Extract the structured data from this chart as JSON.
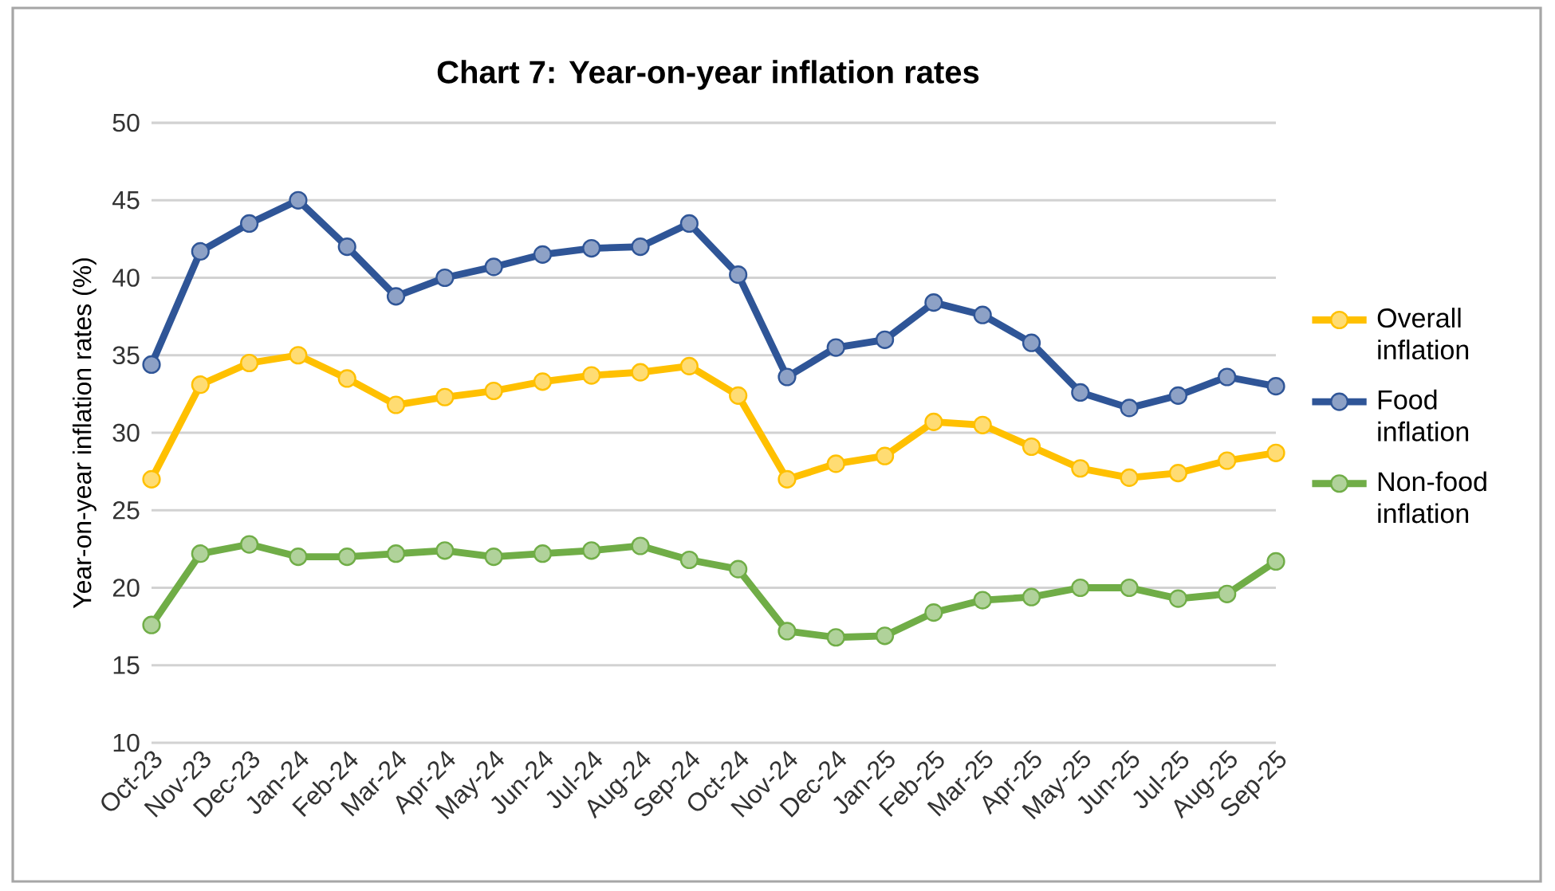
{
  "chart_data": {
    "type": "line",
    "title": "Chart 7: Year-on-year inflation rates",
    "ylabel": "Year-on-year inflation rates (%)",
    "categories": [
      "Oct-23",
      "Nov-23",
      "Dec-23",
      "Jan-24",
      "Feb-24",
      "Mar-24",
      "Apr-24",
      "May-24",
      "Jun-24",
      "Jul-24",
      "Aug-24",
      "Sep-24",
      "Oct-24",
      "Nov-24",
      "Dec-24",
      "Jan-25",
      "Feb-25",
      "Mar-25",
      "Apr-25",
      "May-25",
      "Jun-25",
      "Jul-25",
      "Aug-25",
      "Sep-25"
    ],
    "series": [
      {
        "name": "Overall inflation",
        "color": "#ffc000",
        "values": [
          27.0,
          33.1,
          34.5,
          35.0,
          33.5,
          31.8,
          32.3,
          32.7,
          33.3,
          33.7,
          33.9,
          34.3,
          32.4,
          27.0,
          28.0,
          28.5,
          30.7,
          30.5,
          29.1,
          27.7,
          27.1,
          27.4,
          28.2,
          28.7
        ]
      },
      {
        "name": "Food inflation",
        "color": "#2f5597",
        "values": [
          34.4,
          41.7,
          43.5,
          45.0,
          42.0,
          38.8,
          40.0,
          40.7,
          41.5,
          41.9,
          42.0,
          43.5,
          40.2,
          33.6,
          35.5,
          36.0,
          38.4,
          37.6,
          35.8,
          32.6,
          31.6,
          32.4,
          33.6,
          33.0
        ]
      },
      {
        "name": "Non-food inflation",
        "color": "#70ad47",
        "values": [
          17.6,
          22.2,
          22.8,
          22.0,
          22.0,
          22.2,
          22.4,
          22.0,
          22.2,
          22.4,
          22.7,
          21.8,
          21.2,
          17.2,
          16.8,
          16.9,
          18.4,
          19.2,
          19.4,
          20.0,
          20.0,
          19.3,
          19.6,
          21.7
        ]
      }
    ],
    "ylim": [
      10,
      50
    ],
    "yticks": [
      10,
      15,
      20,
      25,
      30,
      35,
      40,
      45,
      50
    ],
    "grid": "y",
    "legend": "right",
    "marker": "circle",
    "line_style": "solid"
  }
}
